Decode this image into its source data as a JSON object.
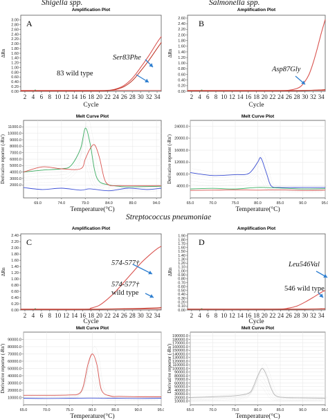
{
  "organisms": {
    "shigella": "Shigella spp.",
    "salmonella": "Salmonella spp.",
    "streptococcus": "Streptococcus pneumoniae"
  },
  "colors": {
    "mutant": "#d9534f",
    "wild_type": "#c0392b",
    "green": "#3cae62",
    "blue": "#3b4fd6",
    "grey": "#b9b9b9",
    "arrow": "#2f7fd0"
  },
  "chart_data": [
    {
      "id": "A",
      "type": "line",
      "panel_letter": "A",
      "title": "Amplification Plot",
      "xlabel": "Cycle",
      "ylabel": "ΔRn",
      "xlim": [
        1,
        35
      ],
      "ylim": [
        0,
        3.2
      ],
      "x_ticks": [
        "2",
        "4",
        "6",
        "8",
        "10",
        "12",
        "14",
        "16",
        "18",
        "20",
        "22",
        "24",
        "26",
        "28",
        "30",
        "32",
        "34"
      ],
      "y_ticks": [
        "0.00",
        "0.20",
        "0.40",
        "0.60",
        "0.80",
        "1.00",
        "1.20",
        "1.40",
        "1.60",
        "1.80",
        "2.00",
        "2.20",
        "2.40",
        "2.60",
        "2.80",
        "3.00"
      ],
      "series": [
        {
          "color_key": "mutant",
          "x": [
            1,
            18,
            22,
            24,
            26,
            28,
            30,
            32,
            34,
            35
          ],
          "y": [
            0.02,
            0.02,
            0.04,
            0.1,
            0.25,
            0.55,
            1.0,
            1.5,
            2.05,
            2.3
          ]
        },
        {
          "color_key": "wild_type",
          "x": [
            1,
            18,
            22,
            24,
            26,
            28,
            30,
            32,
            34,
            35
          ],
          "y": [
            0.02,
            0.02,
            0.03,
            0.08,
            0.2,
            0.45,
            0.85,
            1.3,
            1.8,
            2.05
          ]
        }
      ],
      "annotations": [
        {
          "text": "Ser83Phe",
          "italic": true
        },
        {
          "text": "83 wild type",
          "italic": false
        }
      ]
    },
    {
      "id": "A-melt",
      "type": "line",
      "title": "Melt Curve Plot",
      "xlabel": "Temperature(°C)",
      "ylabel": "Derivative reporter (-Rn')",
      "xlim": [
        66,
        95
      ],
      "ylim": [
        0,
        12000
      ],
      "x_ticks": [
        "69.0",
        "74.0",
        "79.0",
        "84.0",
        "89.0",
        "94.0"
      ],
      "y_ticks": [
        "2000.0",
        "3000.0",
        "4000.0",
        "5000.0",
        "6000.0",
        "7000.0",
        "8000.0",
        "9000.0",
        "10000.0",
        "11000.0"
      ],
      "series": [
        {
          "color_key": "green",
          "x": [
            66,
            70,
            74,
            76,
            78,
            79,
            80,
            81,
            82,
            84,
            86,
            88,
            95
          ],
          "y": [
            4000,
            4300,
            4500,
            5000,
            7600,
            10800,
            8500,
            4200,
            2500,
            2000,
            1800,
            1700,
            1800
          ]
        },
        {
          "color_key": "mutant",
          "x": [
            66,
            70,
            74,
            78,
            79,
            80,
            81,
            82,
            83,
            84,
            86,
            95
          ],
          "y": [
            4000,
            4800,
            4500,
            4500,
            6000,
            7600,
            8200,
            6200,
            3000,
            2000,
            1900,
            1900
          ]
        },
        {
          "color_key": "blue",
          "x": [
            66,
            70,
            74,
            78,
            80,
            84,
            88,
            92,
            95
          ],
          "y": [
            1600,
            1300,
            1500,
            1200,
            1400,
            1100,
            1500,
            1300,
            1500
          ]
        }
      ]
    },
    {
      "id": "B",
      "type": "line",
      "panel_letter": "B",
      "title": "Amplification Plot",
      "xlabel": "Cycle",
      "ylabel": "ΔRn",
      "xlim": [
        1,
        35
      ],
      "ylim": [
        0,
        2.7
      ],
      "x_ticks": [
        "2",
        "4",
        "6",
        "8",
        "10",
        "12",
        "14",
        "16",
        "18",
        "20",
        "22",
        "24",
        "26",
        "28",
        "30",
        "32",
        "34"
      ],
      "y_ticks": [
        "0.00",
        "0.20",
        "0.40",
        "0.60",
        "0.80",
        "1.00",
        "1.20",
        "1.40",
        "1.60",
        "1.80",
        "2.00",
        "2.20",
        "2.40",
        "2.60"
      ],
      "series": [
        {
          "color_key": "mutant",
          "x": [
            1,
            22,
            26,
            28,
            29,
            30,
            31,
            32,
            33,
            34,
            35
          ],
          "y": [
            0.02,
            0.02,
            0.04,
            0.1,
            0.18,
            0.35,
            0.6,
            1.0,
            1.5,
            2.05,
            2.55
          ]
        },
        {
          "color_key": "wild_type",
          "x": [
            1,
            25,
            30,
            32,
            34,
            35
          ],
          "y": [
            0.02,
            0.02,
            0.03,
            0.04,
            0.05,
            0.06
          ]
        }
      ],
      "annotations": [
        {
          "text": "Asp87Gly",
          "italic": true
        }
      ]
    },
    {
      "id": "B-melt",
      "type": "line",
      "title": "Melt Curve Plot",
      "xlabel": "Temperature(°C)",
      "ylabel": "Derivative reporter (-Rn')",
      "xlim": [
        65,
        95
      ],
      "ylim": [
        0,
        26000
      ],
      "x_ticks": [
        "65.0",
        "70.0",
        "75.0",
        "80.0",
        "85.0",
        "90.0",
        "95.0"
      ],
      "y_ticks": [
        "4000.0",
        "8000.0",
        "12000.0",
        "16000.0",
        "20000.0",
        "24000.0"
      ],
      "series": [
        {
          "color_key": "blue",
          "x": [
            65,
            70,
            75,
            78,
            80,
            80.5,
            81,
            82,
            83,
            85,
            90,
            95
          ],
          "y": [
            8500,
            7500,
            7800,
            8200,
            12000,
            13500,
            12500,
            8000,
            4000,
            3500,
            3500,
            3500
          ]
        },
        {
          "color_key": "green",
          "x": [
            65,
            70,
            75,
            80,
            85,
            90,
            95
          ],
          "y": [
            3000,
            3200,
            3000,
            3500,
            3300,
            3000,
            3100
          ]
        },
        {
          "color_key": "mutant",
          "x": [
            65,
            70,
            75,
            80,
            85,
            90,
            95
          ],
          "y": [
            2500,
            2600,
            2700,
            2600,
            2700,
            2500,
            2600
          ]
        }
      ]
    },
    {
      "id": "C",
      "type": "line",
      "panel_letter": "C",
      "title": "Amplification Plot",
      "xlabel": "Cycle",
      "ylabel": "ΔRn",
      "xlim": [
        1,
        35
      ],
      "ylim": [
        0,
        2.45
      ],
      "x_ticks": [
        "2",
        "4",
        "6",
        "8",
        "10",
        "12",
        "14",
        "16",
        "18",
        "20",
        "22",
        "24",
        "26",
        "28",
        "30",
        "32",
        "34"
      ],
      "y_ticks": [
        "0.00",
        "0.20",
        "0.40",
        "0.60",
        "0.80",
        "1.00",
        "1.20",
        "1.40",
        "1.60",
        "1.80",
        "2.00",
        "2.20",
        "2.40"
      ],
      "series": [
        {
          "color_key": "mutant",
          "x": [
            1,
            16,
            18,
            20,
            22,
            24,
            26,
            28,
            30,
            32,
            34,
            35
          ],
          "y": [
            0.02,
            0.02,
            0.06,
            0.15,
            0.35,
            0.6,
            0.9,
            1.2,
            1.5,
            1.75,
            1.97,
            2.05
          ]
        },
        {
          "color_key": "wild_type",
          "x": [
            1,
            18,
            22,
            26,
            30,
            34,
            35
          ],
          "y": [
            0.02,
            0.02,
            0.03,
            0.04,
            0.05,
            0.07,
            0.08
          ]
        }
      ],
      "annotations": [
        {
          "text": "574-577†",
          "italic": true
        },
        {
          "text": "574-577†",
          "italic": true
        },
        {
          "text": "wild type",
          "italic": false
        }
      ]
    },
    {
      "id": "C-melt",
      "type": "line",
      "title": "Melt Curve Plot",
      "xlabel": "Temperature(°C)",
      "ylabel": "Derivative reporter (-Rn')",
      "xlim": [
        65,
        95
      ],
      "ylim": [
        0,
        100000
      ],
      "x_ticks": [
        "65.0",
        "70.0",
        "75.0",
        "80.0",
        "85.0",
        "90.0",
        "95.0"
      ],
      "y_ticks": [
        "10000.0",
        "20000.0",
        "30000.0",
        "40000.0",
        "50000.0",
        "60000.0",
        "70000.0",
        "80000.0",
        "90000.0"
      ],
      "series": [
        {
          "color_key": "mutant",
          "x": [
            65,
            70,
            75,
            77,
            78,
            79,
            80,
            81,
            82,
            84,
            86,
            90,
            95
          ],
          "y": [
            13000,
            13000,
            13500,
            15000,
            25000,
            55000,
            70000,
            55000,
            20000,
            12000,
            11500,
            11000,
            11000
          ]
        },
        {
          "color_key": "blue",
          "x": [
            65,
            70,
            75,
            80,
            85,
            90,
            95
          ],
          "y": [
            9000,
            8800,
            9000,
            9200,
            9000,
            8800,
            9000
          ]
        }
      ]
    },
    {
      "id": "D",
      "type": "line",
      "panel_letter": "D",
      "title": "Amplification Plot",
      "xlabel": "Cycle",
      "ylabel": "ΔRn",
      "xlim": [
        1,
        35
      ],
      "ylim": [
        0,
        1.95
      ],
      "x_ticks": [
        "2",
        "4",
        "6",
        "8",
        "10",
        "12",
        "14",
        "16",
        "18",
        "20",
        "22",
        "24",
        "26",
        "28",
        "30",
        "32",
        "34"
      ],
      "y_ticks": [
        "0.00",
        "0.10",
        "0.20",
        "0.30",
        "0.40",
        "0.50",
        "0.60",
        "0.70",
        "0.80",
        "0.90",
        "1.00",
        "1.10",
        "1.20",
        "1.30",
        "1.40",
        "1.50",
        "1.60",
        "1.70",
        "1.80",
        "1.90"
      ],
      "series": [
        {
          "color_key": "mutant",
          "x": [
            1,
            22,
            26,
            28,
            30,
            32,
            34,
            35
          ],
          "y": [
            0.02,
            0.02,
            0.05,
            0.1,
            0.2,
            0.32,
            0.45,
            0.5
          ]
        },
        {
          "color_key": "wild_type",
          "x": [
            1,
            26,
            30,
            34,
            35
          ],
          "y": [
            0.02,
            0.02,
            0.02,
            0.03,
            0.03
          ]
        }
      ],
      "annotations": [
        {
          "text": "Leu546Val",
          "italic": true
        },
        {
          "text": "546 wild type",
          "italic": false
        }
      ]
    },
    {
      "id": "D-melt",
      "type": "line",
      "title": "Melt Curve Plot",
      "xlabel": "Temperature(°C)",
      "ylabel": "Derivative reporter (-Rn')",
      "xlim": [
        65,
        95
      ],
      "ylim": [
        0,
        200000
      ],
      "x_ticks": [
        "65.0",
        "70.0",
        "75.0",
        "80.0",
        "85.0",
        "90.0",
        "95.0"
      ],
      "y_ticks": [
        "10000.0",
        "20000.0",
        "30000.0",
        "40000.0",
        "50000.0",
        "60000.0",
        "70000.0",
        "80000.0",
        "90000.0",
        "100000.0",
        "110000.0",
        "120000.0",
        "130000.0",
        "140000.0",
        "150000.0",
        "160000.0",
        "170000.0",
        "180000.0",
        "190000.0"
      ],
      "series": [
        {
          "color_key": "grey",
          "x": [
            65,
            70,
            75,
            78,
            79,
            80,
            81,
            82,
            83,
            84,
            86,
            90,
            95
          ],
          "y": [
            20000,
            22000,
            25000,
            32000,
            50000,
            80000,
            100000,
            80000,
            45000,
            25000,
            20000,
            19000,
            18000
          ]
        }
      ]
    }
  ]
}
